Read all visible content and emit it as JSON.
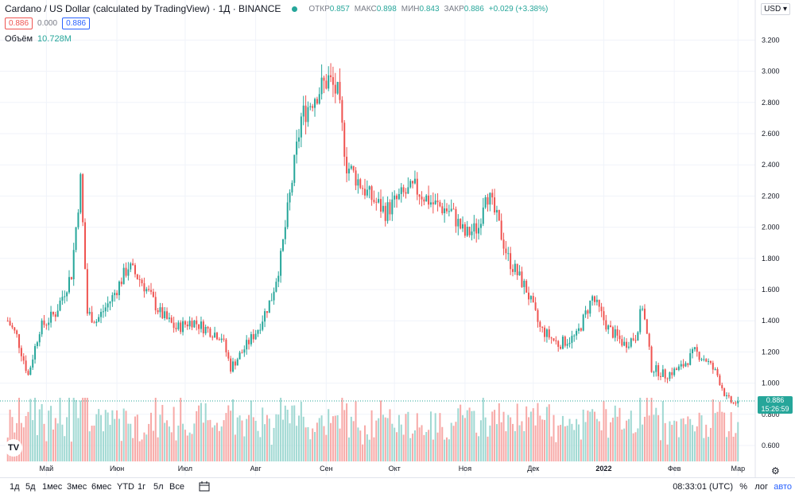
{
  "header": {
    "symbol": "Cardano / US Dollar (calculated by TradingView) · 1Д · BINANCE",
    "open_label": "ОТКР",
    "open": "0.857",
    "high_label": "МАКС",
    "high": "0.898",
    "low_label": "МИН",
    "low": "0.843",
    "close_label": "ЗАКР",
    "close": "0.886",
    "change": "+0.029 (+3.38%)"
  },
  "price_boxes": {
    "bid": "0.886",
    "spread": "0.000",
    "ask": "0.886"
  },
  "volume": {
    "label": "Объём",
    "value": "10.728M"
  },
  "currency": "USD",
  "last_price": {
    "value": "0.886",
    "countdown": "15:26:59"
  },
  "toolbar": {
    "timeframes": [
      "1д",
      "5д",
      "1мес",
      "3мес",
      "6мес",
      "YTD",
      "1г",
      "5л",
      "Все"
    ],
    "clock": "08:33:01 (UTC)",
    "percent": "%",
    "log": "лог",
    "auto": "авто"
  },
  "colors": {
    "up": "#26a69a",
    "down": "#ef5350",
    "up_vol": "#9fd8d2",
    "down_vol": "#f7a9a7",
    "grid": "#f0f3fa"
  },
  "icons": {
    "logo": "tradingview-logo",
    "range": "calendar-range-icon",
    "settings": "gear-icon"
  },
  "chart_data": {
    "type": "candlestick",
    "x_ticks": [
      "Май",
      "Июн",
      "Июл",
      "Авг",
      "Сен",
      "Окт",
      "Ноя",
      "Дек",
      "2022",
      "Фев",
      "Мар"
    ],
    "y_ticks": [
      "0.600",
      "0.800",
      "1.000",
      "1.200",
      "1.400",
      "1.600",
      "1.800",
      "2.000",
      "2.200",
      "2.400",
      "2.600",
      "2.800",
      "3.000",
      "3.200"
    ],
    "ylim": [
      0.5,
      3.3
    ],
    "close_path": [
      [
        "2021-04-14",
        1.4
      ],
      [
        "2021-04-18",
        1.3
      ],
      [
        "2021-04-23",
        1.05
      ],
      [
        "2021-04-28",
        1.35
      ],
      [
        "2021-05-05",
        1.45
      ],
      [
        "2021-05-12",
        1.7
      ],
      [
        "2021-05-16",
        2.3
      ],
      [
        "2021-05-19",
        1.45
      ],
      [
        "2021-05-23",
        1.4
      ],
      [
        "2021-05-30",
        1.55
      ],
      [
        "2021-06-06",
        1.75
      ],
      [
        "2021-06-12",
        1.65
      ],
      [
        "2021-06-20",
        1.45
      ],
      [
        "2021-06-27",
        1.35
      ],
      [
        "2021-07-04",
        1.4
      ],
      [
        "2021-07-10",
        1.35
      ],
      [
        "2021-07-17",
        1.3
      ],
      [
        "2021-07-21",
        1.1
      ],
      [
        "2021-07-26",
        1.2
      ],
      [
        "2021-08-02",
        1.35
      ],
      [
        "2021-08-08",
        1.55
      ],
      [
        "2021-08-12",
        1.8
      ],
      [
        "2021-08-16",
        2.2
      ],
      [
        "2021-08-21",
        2.7
      ],
      [
        "2021-08-27",
        2.85
      ],
      [
        "2021-09-02",
        2.95
      ],
      [
        "2021-09-06",
        2.85
      ],
      [
        "2021-09-10",
        2.4
      ],
      [
        "2021-09-20",
        2.2
      ],
      [
        "2021-09-27",
        2.1
      ],
      [
        "2021-10-04",
        2.2
      ],
      [
        "2021-10-10",
        2.25
      ],
      [
        "2021-10-18",
        2.15
      ],
      [
        "2021-10-26",
        2.1
      ],
      [
        "2021-11-01",
        1.95
      ],
      [
        "2021-11-07",
        2.0
      ],
      [
        "2021-11-10",
        2.25
      ],
      [
        "2021-11-15",
        2.05
      ],
      [
        "2021-11-20",
        1.8
      ],
      [
        "2021-11-28",
        1.6
      ],
      [
        "2021-12-04",
        1.35
      ],
      [
        "2021-12-12",
        1.25
      ],
      [
        "2021-12-20",
        1.3
      ],
      [
        "2021-12-27",
        1.55
      ],
      [
        "2022-01-03",
        1.35
      ],
      [
        "2022-01-10",
        1.25
      ],
      [
        "2022-01-15",
        1.3
      ],
      [
        "2022-01-18",
        1.5
      ],
      [
        "2022-01-22",
        1.1
      ],
      [
        "2022-01-28",
        1.05
      ],
      [
        "2022-02-04",
        1.1
      ],
      [
        "2022-02-10",
        1.2
      ],
      [
        "2022-02-15",
        1.15
      ],
      [
        "2022-02-20",
        1.05
      ],
      [
        "2022-02-24",
        0.9
      ],
      [
        "2022-02-27",
        0.87
      ],
      [
        "2022-03-01",
        0.886
      ]
    ],
    "last_close": 0.886
  }
}
